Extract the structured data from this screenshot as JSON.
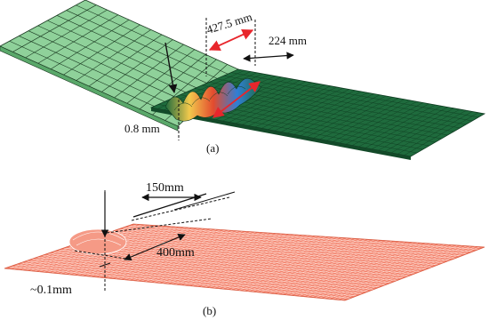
{
  "panel_a": {
    "caption": "(a)",
    "dim_top": "427.5 mm",
    "dim_right": "224 mm",
    "dim_depth": "0.8 mm",
    "colors": {
      "mesh_light": "#8fd19a",
      "mesh_dark": "#1f6b3d",
      "arrow": "#e8262c",
      "ink": "#111111"
    }
  },
  "panel_b": {
    "caption": "(b)",
    "dim_top": "150mm",
    "dim_mid": "400mm",
    "dim_depth": "~0.1mm",
    "colors": {
      "mesh_fill": "#f2806a",
      "mesh_line": "#ffffff",
      "ink": "#111111"
    }
  }
}
